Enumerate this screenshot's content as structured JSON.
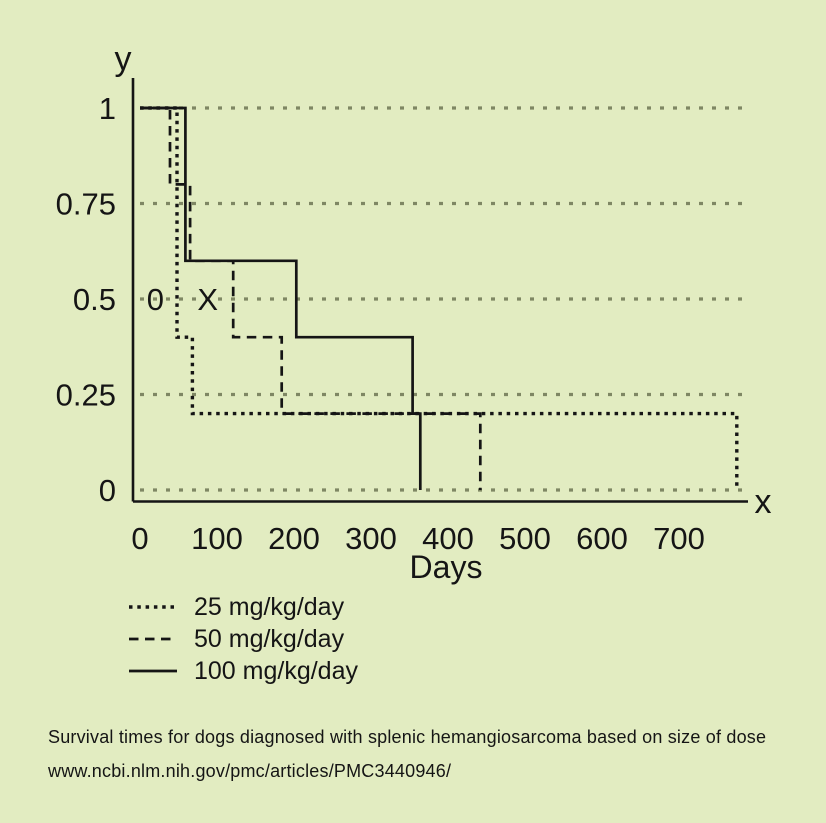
{
  "page": {
    "background_color": "#e2ecc1",
    "caption": "Survival times for dogs diagnosed with splenic hemangiosarcoma based on size of dose",
    "source_url": "www.ncbi.nlm.nih.gov/pmc/articles/PMC3440946/"
  },
  "chart_data": {
    "type": "line",
    "subtype": "step-survival",
    "title": "",
    "xlabel": "Days",
    "x_axis_letter": "x",
    "y_axis_letter": "y",
    "xlim": [
      0,
      790
    ],
    "ylim": [
      0,
      1
    ],
    "x_ticks": [
      0,
      100,
      200,
      300,
      400,
      500,
      600,
      700
    ],
    "y_ticks": [
      0,
      0.25,
      0.5,
      0.75,
      1
    ],
    "y_tick_labels": [
      "0",
      "0.25",
      "0.5",
      "0.75",
      "1"
    ],
    "grid": "horizontal-dotted",
    "legend_position": "below-left",
    "colors": {
      "line": "#151515",
      "grid": "#7f8764",
      "background": "#e2ecc1"
    },
    "annotations": [
      {
        "text": "0",
        "x_days": 20,
        "y": 0.5
      },
      {
        "text": "X",
        "x_days": 88,
        "y": 0.5
      }
    ],
    "series": [
      {
        "name": "25 mg/kg/day",
        "style": "dotted",
        "points": [
          [
            0,
            1.0
          ],
          [
            48,
            1.0
          ],
          [
            48,
            0.4
          ],
          [
            68,
            0.4
          ],
          [
            68,
            0.2
          ],
          [
            775,
            0.2
          ],
          [
            775,
            0
          ]
        ]
      },
      {
        "name": "50 mg/kg/day",
        "style": "dashed",
        "points": [
          [
            0,
            1.0
          ],
          [
            39,
            1.0
          ],
          [
            39,
            0.8
          ],
          [
            65,
            0.8
          ],
          [
            65,
            0.6
          ],
          [
            121,
            0.6
          ],
          [
            121,
            0.4
          ],
          [
            184,
            0.4
          ],
          [
            184,
            0.2
          ],
          [
            442,
            0.2
          ],
          [
            442,
            0
          ]
        ]
      },
      {
        "name": "100 mg/kg/day",
        "style": "solid",
        "points": [
          [
            0,
            1.0
          ],
          [
            59,
            1.0
          ],
          [
            59,
            0.6
          ],
          [
            203,
            0.6
          ],
          [
            203,
            0.4
          ],
          [
            354,
            0.4
          ],
          [
            354,
            0.2
          ],
          [
            364,
            0.2
          ],
          [
            364,
            0
          ]
        ]
      }
    ]
  }
}
